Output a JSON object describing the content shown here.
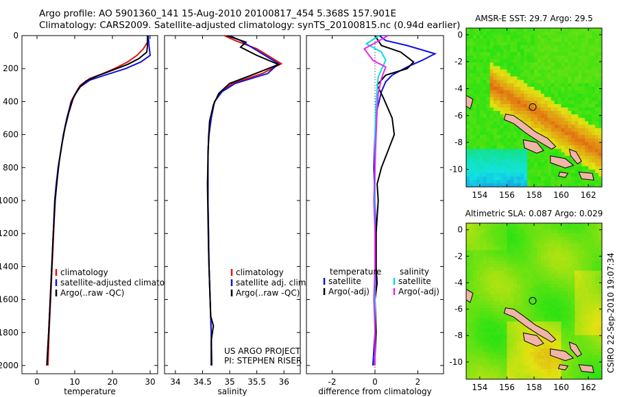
{
  "title_line1": "Argo profile: AO 5901360_141 15-Aug-2010 20100817_454 5.368S 157.901E",
  "title_line2": "Climatology: CARS2009. Satellite-adjusted climatology: synTS_20100815.nc (0.94d earlier)",
  "side_label": "CSIRO 22-Sep-2010 19:07:34",
  "colors": {
    "clim": "#dd1111",
    "sat": "#1010dd",
    "argo": "#000000",
    "sat_sal": "#00dddd",
    "argo_sal": "#ee22ee",
    "coast_fill": "#f0b4a8"
  },
  "chart_data": [
    {
      "id": "temp",
      "type": "line",
      "xlabel": "temperature",
      "xlim": [
        -4,
        32
      ],
      "xticks": [
        0,
        10,
        20,
        30
      ],
      "ylim": [
        2050,
        0
      ],
      "yticks": [
        0,
        200,
        400,
        600,
        800,
        1000,
        1200,
        1400,
        1600,
        1800,
        2000
      ],
      "legend": {
        "entries": [
          "climatology",
          "satellite-adjusted climatology",
          "Argo(..raw -QC)"
        ]
      },
      "series": [
        {
          "name": "climatology",
          "key": "clim",
          "points": [
            [
              29.5,
              0
            ],
            [
              29.3,
              40
            ],
            [
              28.2,
              80
            ],
            [
              26.5,
              120
            ],
            [
              24,
              160
            ],
            [
              21,
              195
            ],
            [
              17.5,
              230
            ],
            [
              14,
              260
            ],
            [
              11.5,
              300
            ],
            [
              10.2,
              350
            ],
            [
              9,
              400
            ],
            [
              8,
              500
            ],
            [
              7,
              600
            ],
            [
              6.3,
              700
            ],
            [
              5.6,
              800
            ],
            [
              5.2,
              900
            ],
            [
              4.8,
              1000
            ],
            [
              4.4,
              1200
            ],
            [
              4,
              1400
            ],
            [
              3.6,
              1600
            ],
            [
              3.2,
              1800
            ],
            [
              2.9,
              2000
            ]
          ]
        },
        {
          "name": "satellite-adjusted climatology",
          "key": "sat",
          "points": [
            [
              29.5,
              0
            ],
            [
              29.7,
              60
            ],
            [
              30,
              120
            ],
            [
              27.5,
              160
            ],
            [
              23.5,
              200
            ],
            [
              18,
              240
            ],
            [
              14,
              270
            ],
            [
              11.5,
              310
            ],
            [
              10,
              360
            ],
            [
              9,
              410
            ],
            [
              7.9,
              500
            ],
            [
              7,
              600
            ],
            [
              6.3,
              700
            ],
            [
              5.6,
              800
            ],
            [
              5.1,
              900
            ],
            [
              4.7,
              1000
            ],
            [
              4.3,
              1200
            ],
            [
              3.9,
              1400
            ],
            [
              3.5,
              1600
            ],
            [
              3.1,
              1800
            ],
            [
              2.6,
              2000
            ]
          ]
        },
        {
          "name": "Argo(..raw -QC)",
          "key": "argo",
          "points": [
            [
              29.3,
              0
            ],
            [
              29.3,
              60
            ],
            [
              29.1,
              100
            ],
            [
              27,
              140
            ],
            [
              24,
              175
            ],
            [
              20,
              210
            ],
            [
              16,
              245
            ],
            [
              13,
              275
            ],
            [
              11,
              320
            ],
            [
              9.6,
              380
            ],
            [
              8.5,
              460
            ],
            [
              7.4,
              560
            ],
            [
              6.6,
              660
            ],
            [
              5.9,
              760
            ],
            [
              5.3,
              880
            ],
            [
              4.8,
              1000
            ],
            [
              4.3,
              1200
            ],
            [
              3.9,
              1400
            ],
            [
              3.5,
              1600
            ],
            [
              3.1,
              1800
            ],
            [
              2.6,
              2000
            ]
          ]
        }
      ]
    },
    {
      "id": "sal",
      "type": "line",
      "xlabel": "salinity",
      "xlim": [
        33.8,
        36.3
      ],
      "xticks": [
        34,
        34.5,
        35,
        35.5,
        36
      ],
      "ylim": [
        2050,
        0
      ],
      "legend": {
        "entries": [
          "climatology",
          "satellite adj. clim.",
          "Argo(..raw -QC)"
        ]
      },
      "annotation": [
        "US ARGO PROJECT",
        "PI: STEPHEN RISER"
      ],
      "series": [
        {
          "name": "climatology",
          "key": "clim",
          "points": [
            [
              34.9,
              0
            ],
            [
              35.1,
              30
            ],
            [
              35.5,
              80
            ],
            [
              35.95,
              170
            ],
            [
              35.6,
              230
            ],
            [
              35.05,
              290
            ],
            [
              34.85,
              340
            ],
            [
              34.72,
              400
            ],
            [
              34.66,
              500
            ],
            [
              34.62,
              600
            ],
            [
              34.6,
              700
            ],
            [
              34.6,
              800
            ],
            [
              34.6,
              1000
            ],
            [
              34.61,
              1200
            ],
            [
              34.62,
              1400
            ],
            [
              34.64,
              1600
            ],
            [
              34.66,
              1800
            ],
            [
              34.67,
              2000
            ]
          ]
        },
        {
          "name": "satellite adj. clim.",
          "key": "sat",
          "points": [
            [
              35,
              0
            ],
            [
              35.2,
              30
            ],
            [
              35.5,
              90
            ],
            [
              35.9,
              170
            ],
            [
              35.7,
              230
            ],
            [
              35.1,
              290
            ],
            [
              34.86,
              340
            ],
            [
              34.72,
              400
            ],
            [
              34.66,
              500
            ],
            [
              34.62,
              600
            ],
            [
              34.6,
              700
            ],
            [
              34.6,
              800
            ],
            [
              34.6,
              1000
            ],
            [
              34.61,
              1200
            ],
            [
              34.62,
              1400
            ],
            [
              34.64,
              1600
            ],
            [
              34.66,
              1800
            ],
            [
              34.67,
              2000
            ]
          ]
        },
        {
          "name": "Argo(..raw -QC)",
          "key": "argo",
          "points": [
            [
              34.95,
              0
            ],
            [
              35.3,
              40
            ],
            [
              35.2,
              70
            ],
            [
              35.5,
              120
            ],
            [
              35.9,
              175
            ],
            [
              35.4,
              240
            ],
            [
              35.0,
              290
            ],
            [
              34.8,
              350
            ],
            [
              34.7,
              420
            ],
            [
              34.63,
              520
            ],
            [
              34.61,
              620
            ],
            [
              34.6,
              750
            ],
            [
              34.59,
              900
            ],
            [
              34.6,
              1100
            ],
            [
              34.61,
              1300
            ],
            [
              34.63,
              1500
            ],
            [
              34.65,
              1700
            ],
            [
              34.7,
              1760
            ],
            [
              34.66,
              1850
            ],
            [
              34.66,
              2000
            ]
          ]
        }
      ]
    },
    {
      "id": "diff",
      "type": "line",
      "xlabel": "difference from climatology",
      "xlim": [
        -3.2,
        3.2
      ],
      "xticks": [
        -2,
        0,
        2
      ],
      "ylim": [
        2050,
        0
      ],
      "legend": {
        "temperature_heading": "temperature",
        "salinity_heading": "salinity",
        "temperature_entries": [
          "satellite",
          "Argo(-adj)"
        ],
        "salinity_entries": [
          "satellite",
          "Argo(-adj)"
        ]
      },
      "series": [
        {
          "name": "temperature satellite",
          "key": "sat",
          "points": [
            [
              0.2,
              0
            ],
            [
              0.5,
              30
            ],
            [
              1.5,
              60
            ],
            [
              2.8,
              110
            ],
            [
              2.2,
              150
            ],
            [
              1.5,
              190
            ],
            [
              0.8,
              240
            ],
            [
              0.5,
              280
            ],
            [
              0.3,
              340
            ],
            [
              0.1,
              450
            ],
            [
              0,
              600
            ],
            [
              -0.05,
              800
            ],
            [
              0,
              1000
            ],
            [
              0.05,
              1200
            ],
            [
              0.05,
              1400
            ],
            [
              0,
              1600
            ],
            [
              0,
              1800
            ],
            [
              -0.1,
              2000
            ]
          ]
        },
        {
          "name": "temperature Argo(-adj)",
          "key": "argo",
          "points": [
            [
              0,
              0
            ],
            [
              0.3,
              60
            ],
            [
              1.2,
              100
            ],
            [
              1.8,
              160
            ],
            [
              1.5,
              200
            ],
            [
              0.5,
              240
            ],
            [
              0.1,
              300
            ],
            [
              0.4,
              380
            ],
            [
              0.8,
              500
            ],
            [
              0.9,
              600
            ],
            [
              0.6,
              700
            ],
            [
              0.3,
              800
            ],
            [
              0.1,
              900
            ],
            [
              0.15,
              1000
            ],
            [
              0.05,
              1200
            ],
            [
              0.05,
              1400
            ],
            [
              0.1,
              1500
            ],
            [
              0,
              1600
            ],
            [
              0.05,
              1800
            ],
            [
              -0.02,
              2000
            ]
          ]
        },
        {
          "name": "salinity satellite",
          "key": "sat_sal",
          "points": [
            [
              0.2,
              0
            ],
            [
              -0.4,
              50
            ],
            [
              0.3,
              100
            ],
            [
              0.5,
              150
            ],
            [
              0.15,
              250
            ],
            [
              0.05,
              400
            ],
            [
              0,
              600
            ],
            [
              0,
              1000
            ],
            [
              0,
              1400
            ],
            [
              0,
              1800
            ],
            [
              0,
              2000
            ]
          ]
        },
        {
          "name": "salinity Argo(-adj)",
          "key": "argo_sal",
          "points": [
            [
              0.6,
              0
            ],
            [
              0.2,
              30
            ],
            [
              -0.5,
              80
            ],
            [
              -0.1,
              150
            ],
            [
              0.5,
              190
            ],
            [
              0.3,
              260
            ],
            [
              0.15,
              350
            ],
            [
              0.1,
              450
            ],
            [
              0.05,
              600
            ],
            [
              0,
              800
            ],
            [
              -0.05,
              1000
            ],
            [
              0,
              1200
            ],
            [
              0,
              1400
            ],
            [
              -0.05,
              1600
            ],
            [
              0,
              1800
            ],
            [
              0,
              2000
            ]
          ]
        }
      ]
    },
    {
      "id": "map_sst",
      "type": "heatmap",
      "title": "AMSR-E SST: 29.7 Argo: 29.5",
      "xlim": [
        153,
        163
      ],
      "xticks": [
        154,
        156,
        158,
        160,
        162
      ],
      "ylim": [
        -11.3,
        0.5
      ],
      "yticks": [
        0,
        -2,
        -4,
        -6,
        -8,
        -10
      ],
      "marker": {
        "lon": 157.9,
        "lat": -5.37
      }
    },
    {
      "id": "map_sla",
      "type": "heatmap",
      "title": "Altimetric SLA: 0.087 Argo: 0.029",
      "xlim": [
        153,
        163
      ],
      "xticks": [
        154,
        156,
        158,
        160,
        162
      ],
      "ylim": [
        -11.3,
        0.5
      ],
      "yticks": [
        0,
        -2,
        -4,
        -6,
        -8,
        -10
      ],
      "marker": {
        "lon": 157.9,
        "lat": -5.37
      }
    }
  ]
}
